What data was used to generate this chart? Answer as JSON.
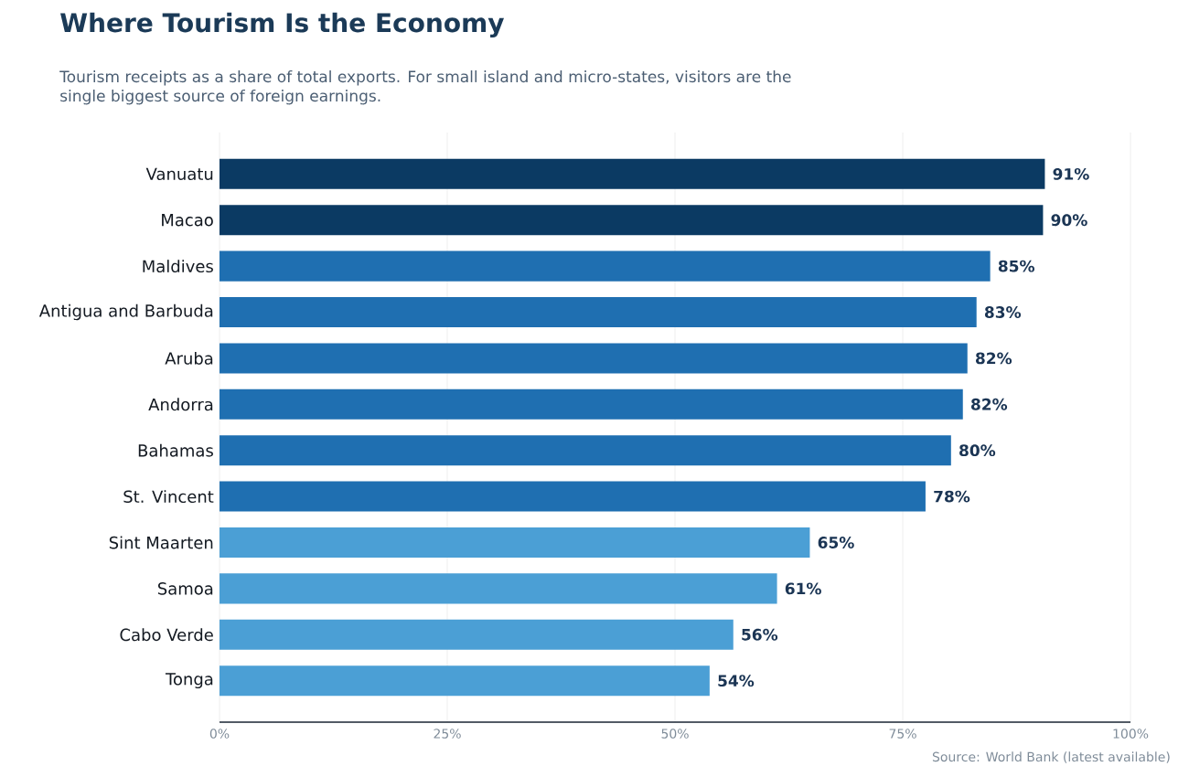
{
  "chart_data": {
    "type": "bar",
    "orientation": "horizontal",
    "title": "Where Tourism Is the Economy",
    "subtitle": "Tourism receipts as a share of total exports. For small island and micro-states, visitors are the single biggest source of foreign earnings.",
    "categories": [
      "Vanuatu",
      "Macao",
      "Maldives",
      "Antigua and Barbuda",
      "Aruba",
      "Andorra",
      "Bahamas",
      "St. Vincent",
      "Sint Maarten",
      "Samoa",
      "Cabo Verde",
      "Tonga"
    ],
    "values": [
      90.6,
      90.4,
      84.6,
      83.1,
      82.1,
      81.6,
      80.3,
      77.5,
      64.8,
      61.2,
      56.4,
      53.8
    ],
    "value_labels": [
      "91%",
      "90%",
      "85%",
      "83%",
      "82%",
      "82%",
      "80%",
      "78%",
      "65%",
      "61%",
      "56%",
      "54%"
    ],
    "colors": [
      "#0b3a63",
      "#0b3a63",
      "#1f6fb1",
      "#1f6fb1",
      "#1f6fb1",
      "#1f6fb1",
      "#1f6fb1",
      "#1f6fb1",
      "#4b9fd5",
      "#4b9fd5",
      "#4b9fd5",
      "#4b9fd5"
    ],
    "xlim": [
      0,
      100
    ],
    "xticks": [
      {
        "value": 0,
        "label": "0%"
      },
      {
        "value": 25,
        "label": "25%"
      },
      {
        "value": 50,
        "label": "50%"
      },
      {
        "value": 75,
        "label": "75%"
      },
      {
        "value": 100,
        "label": "100%"
      }
    ],
    "grid": "x",
    "annotations": [
      "Source: World Bank (latest available)"
    ]
  }
}
